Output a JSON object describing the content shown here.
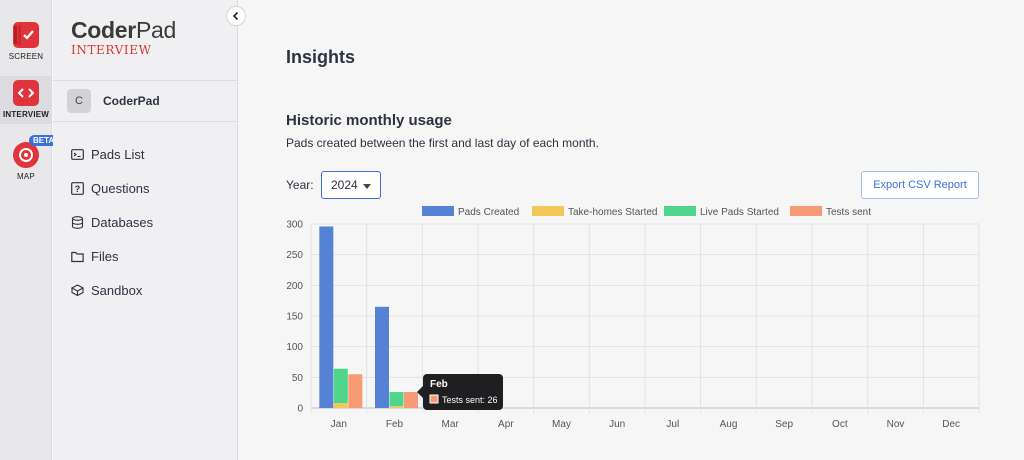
{
  "rail": {
    "items": [
      {
        "label": "SCREEN"
      },
      {
        "label": "INTERVIEW"
      },
      {
        "label": "MAP",
        "badge": "BETA"
      }
    ]
  },
  "sidebar": {
    "logo": {
      "main_bold": "Coder",
      "main_thin": "Pad",
      "sub": "INTERVIEW"
    },
    "org": {
      "initial": "C",
      "name": "CoderPad"
    },
    "nav": [
      {
        "label": "Pads List",
        "icon": "terminal-icon"
      },
      {
        "label": "Questions",
        "icon": "question-icon"
      },
      {
        "label": "Databases",
        "icon": "database-icon"
      },
      {
        "label": "Files",
        "icon": "folder-icon"
      },
      {
        "label": "Sandbox",
        "icon": "cube-icon"
      }
    ]
  },
  "main": {
    "page_title": "Insights",
    "section_title": "Historic monthly usage",
    "section_subtitle": "Pads created between the first and last day of each month.",
    "year_label": "Year:",
    "year_value": "2024",
    "export_label": "Export CSV Report"
  },
  "colors": {
    "pads_created": "#5582d4",
    "take_homes": "#f2c957",
    "live_pads": "#4fd68a",
    "tests_sent": "#f89a73",
    "accent": "#3d6fd9"
  },
  "chart_data": {
    "type": "bar",
    "categories": [
      "Jan",
      "Feb",
      "Mar",
      "Apr",
      "May",
      "Jun",
      "Jul",
      "Aug",
      "Sep",
      "Oct",
      "Nov",
      "Dec"
    ],
    "stacked_groups": [
      [
        "Take-homes Started",
        "Live Pads Started"
      ]
    ],
    "series": [
      {
        "name": "Pads Created",
        "values": [
          296,
          165,
          0,
          0,
          0,
          0,
          0,
          0,
          0,
          0,
          0,
          0
        ]
      },
      {
        "name": "Take-homes Started",
        "values": [
          8,
          3,
          0,
          0,
          0,
          0,
          0,
          0,
          0,
          0,
          0,
          0
        ]
      },
      {
        "name": "Live Pads Started",
        "values": [
          56,
          23,
          0,
          0,
          0,
          0,
          0,
          0,
          0,
          0,
          0,
          0
        ]
      },
      {
        "name": "Tests sent",
        "values": [
          55,
          26,
          0,
          0,
          0,
          0,
          0,
          0,
          0,
          0,
          0,
          0
        ]
      }
    ],
    "yticks": [
      0,
      50,
      100,
      150,
      200,
      250,
      300
    ],
    "ylim": [
      0,
      300
    ],
    "grid": true,
    "legend": "top",
    "tooltip": {
      "category": "Feb",
      "title": "Feb",
      "text": "Tests sent: 26",
      "series": "Tests sent"
    }
  }
}
